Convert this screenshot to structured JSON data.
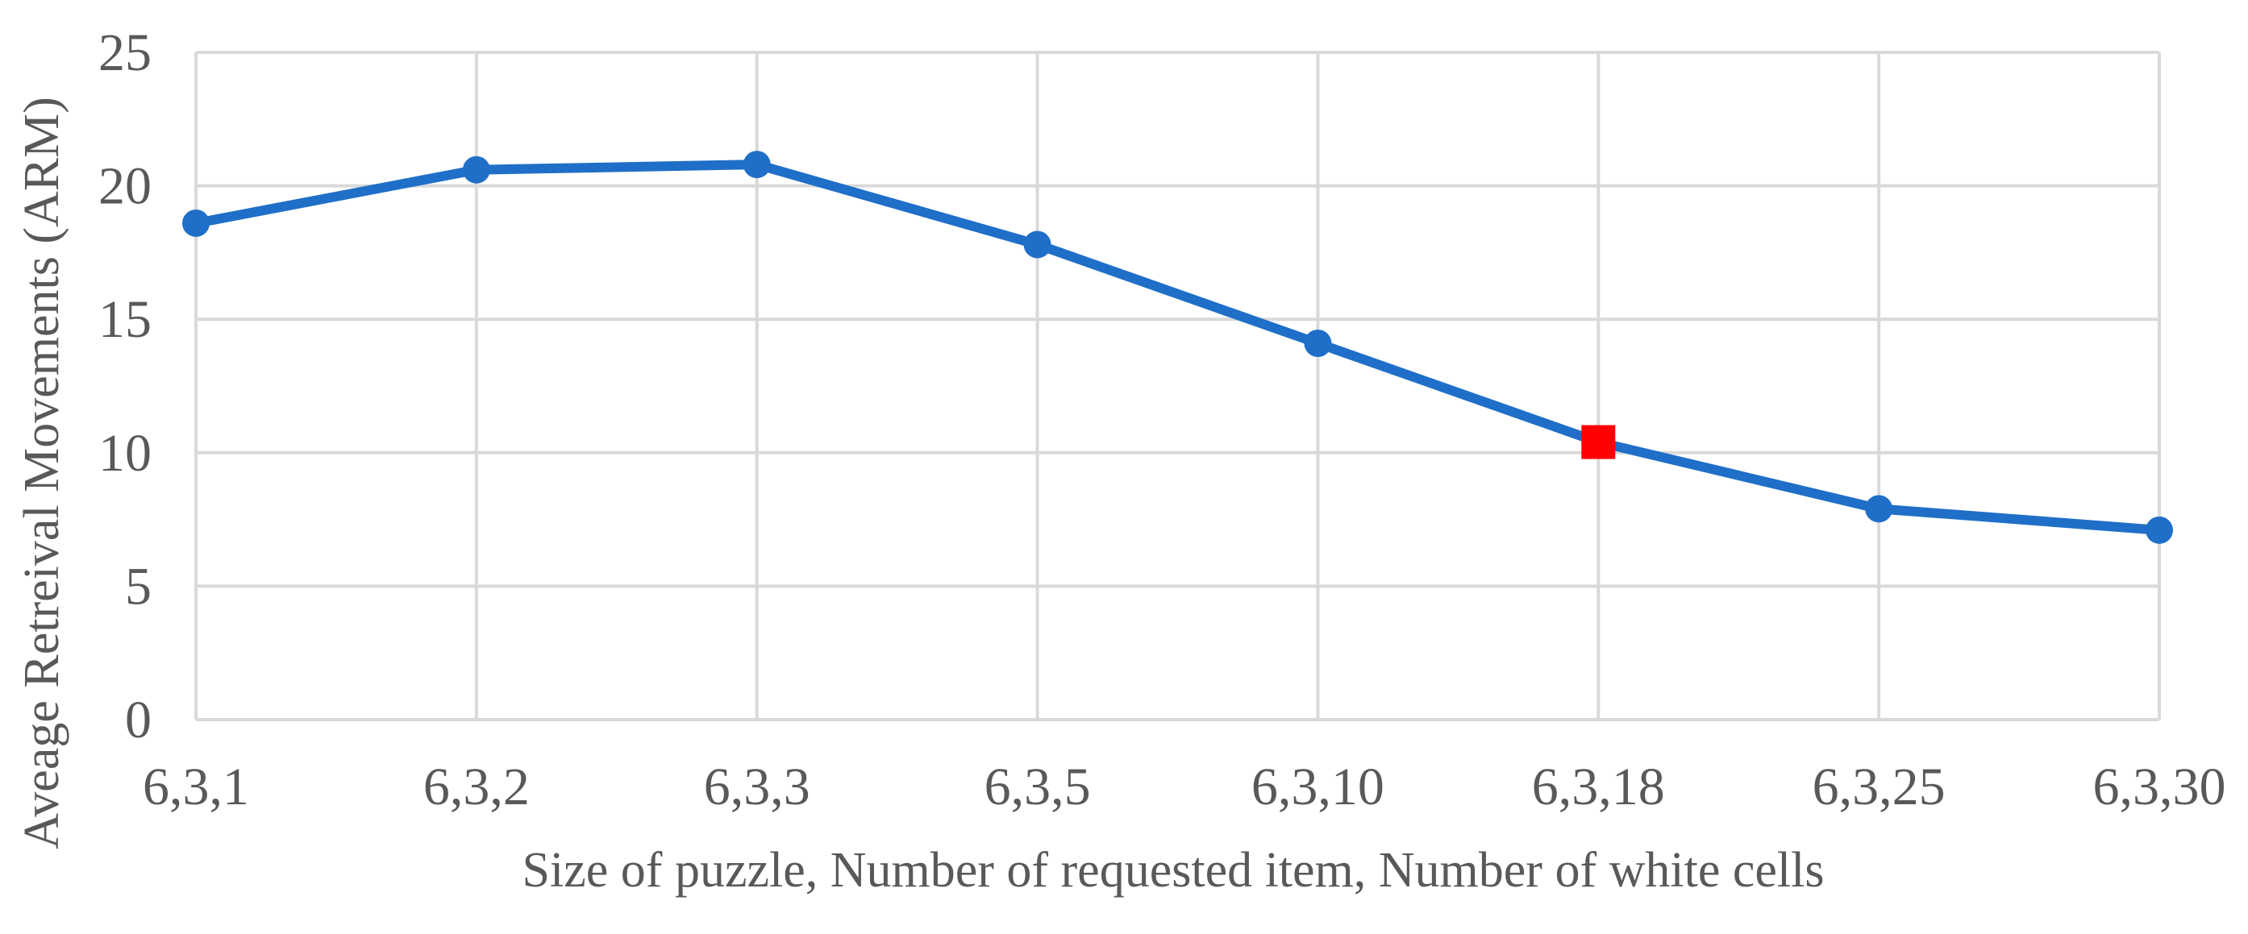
{
  "chart_data": {
    "type": "line",
    "title": "",
    "xlabel": "Size of puzzle, Number of requested item, Number of white cells",
    "ylabel": "Aveage Retreival Movements (ARM)",
    "categories": [
      "6,3,1",
      "6,3,2",
      "6,3,3",
      "6,3,5",
      "6,3,10",
      "6,3,18",
      "6,3,25",
      "6,3,30"
    ],
    "series": [
      {
        "values": [
          18.6,
          20.6,
          20.8,
          17.8,
          14.1,
          10.4,
          7.9,
          7.1
        ],
        "color": "#1f6fc8",
        "marker": "circle",
        "highlight": {
          "category": "6,3,18",
          "marker": "square",
          "color": "#ff0000"
        }
      }
    ],
    "ylim": [
      0,
      25
    ],
    "yticks": [
      "0",
      "5",
      "10",
      "15",
      "20",
      "25"
    ],
    "grid": true,
    "legend": "none"
  }
}
